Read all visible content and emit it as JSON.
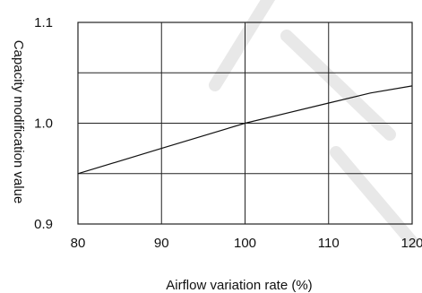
{
  "chart_data": {
    "type": "line",
    "title": "",
    "xlabel": "Airflow variation rate (%)",
    "ylabel": "Capacity modification value",
    "xlim": [
      80,
      120
    ],
    "ylim": [
      0.9,
      1.1
    ],
    "x_ticks": [
      "80",
      "90",
      "100",
      "110",
      "120"
    ],
    "y_ticks": [
      "0.9",
      "1.0",
      "1.1"
    ],
    "grid": true,
    "series": [
      {
        "x": [
          80,
          90,
          100,
          110,
          115,
          120
        ],
        "y": [
          0.95,
          0.975,
          1.0,
          1.02,
          1.03,
          1.037
        ]
      }
    ]
  }
}
